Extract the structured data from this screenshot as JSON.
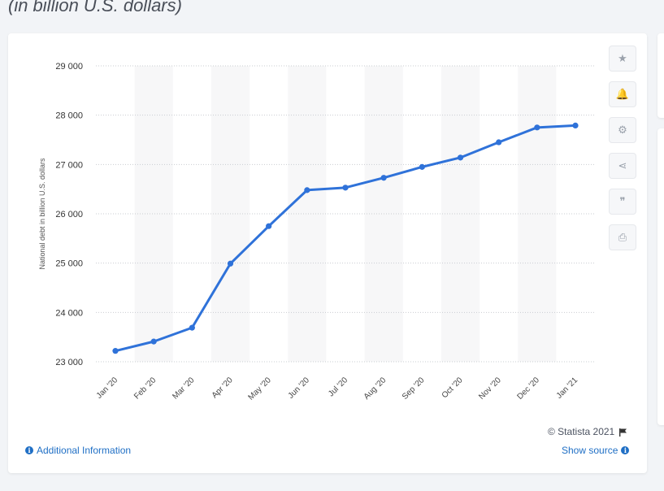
{
  "header": {
    "subtitle": "(in billion U.S. dollars)"
  },
  "chart_data": {
    "type": "line",
    "title": "",
    "xlabel": "",
    "ylabel": "National debt in billion U.S. dollars",
    "ylim": [
      23000,
      29000
    ],
    "yticks": [
      23000,
      24000,
      25000,
      26000,
      27000,
      28000,
      29000
    ],
    "ytick_labels": [
      "23 000",
      "24 000",
      "25 000",
      "26 000",
      "27 000",
      "28 000",
      "29 000"
    ],
    "categories": [
      "Jan '20",
      "Feb '20",
      "Mar '20",
      "Apr '20",
      "May '20",
      "Jun '20",
      "Jul '20",
      "Aug '20",
      "Sep '20",
      "Oct '20",
      "Nov '20",
      "Dec '20",
      "Jan '21"
    ],
    "series": [
      {
        "values": [
          23220,
          23410,
          23690,
          24990,
          25750,
          26480,
          26530,
          26730,
          26950,
          27140,
          27450,
          27750,
          27790
        ]
      }
    ],
    "line_color": "#2f72d9",
    "grid": true
  },
  "toolbar": {
    "items": [
      {
        "name": "star-icon",
        "glyph": "★"
      },
      {
        "name": "bell-icon",
        "glyph": "🔔"
      },
      {
        "name": "gear-icon",
        "glyph": "⚙"
      },
      {
        "name": "share-icon",
        "glyph": "⋖"
      },
      {
        "name": "quote-icon",
        "glyph": "❞"
      },
      {
        "name": "print-icon",
        "glyph": "⎙"
      }
    ]
  },
  "footer": {
    "copyright": "© Statista 2021",
    "additional_info": "Additional Information",
    "show_source": "Show source"
  }
}
